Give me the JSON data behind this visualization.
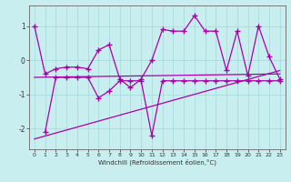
{
  "bg_color": "#c8eef0",
  "line_color": "#aa00aa",
  "grid_color": "#aadddd",
  "axis_color": "#666666",
  "xlabel": "Windchill (Refroidissement éolien,°C)",
  "x_ticks": [
    0,
    1,
    2,
    3,
    4,
    5,
    6,
    7,
    8,
    9,
    10,
    11,
    12,
    13,
    14,
    15,
    16,
    17,
    18,
    19,
    20,
    21,
    22,
    23
  ],
  "y_ticks": [
    -2,
    -1,
    0,
    1
  ],
  "ylim": [
    -2.6,
    1.6
  ],
  "xlim": [
    -0.5,
    23.5
  ],
  "s1x": [
    0,
    1,
    2,
    3,
    4,
    5,
    6,
    7,
    8,
    9,
    10,
    11,
    12,
    13,
    14,
    15,
    16,
    17,
    18,
    19,
    20,
    21,
    22,
    23
  ],
  "s1y": [
    1.0,
    -0.4,
    -0.25,
    -0.2,
    -0.2,
    -0.25,
    0.3,
    0.45,
    -0.55,
    -0.8,
    -0.55,
    0.0,
    0.9,
    0.85,
    0.85,
    1.3,
    0.85,
    0.85,
    -0.3,
    0.85,
    -0.45,
    1.0,
    0.1,
    -0.55
  ],
  "s2x": [
    1,
    2,
    3,
    4,
    5,
    6,
    7,
    8,
    9,
    10,
    11,
    12,
    13,
    14,
    15,
    16,
    17,
    18,
    19,
    20,
    21,
    22,
    23
  ],
  "s2y": [
    -2.1,
    -0.5,
    -0.5,
    -0.5,
    -0.5,
    -1.1,
    -0.9,
    -0.6,
    -0.6,
    -0.6,
    -2.2,
    -0.6,
    -0.6,
    -0.6,
    -0.6,
    -0.6,
    -0.6,
    -0.6,
    -0.6,
    -0.6,
    -0.6,
    -0.6,
    -0.6
  ],
  "trend1_x": [
    0,
    23
  ],
  "trend1_y": [
    -2.3,
    -0.3
  ],
  "trend2_x": [
    0,
    23
  ],
  "trend2_y": [
    -0.5,
    -0.4
  ]
}
